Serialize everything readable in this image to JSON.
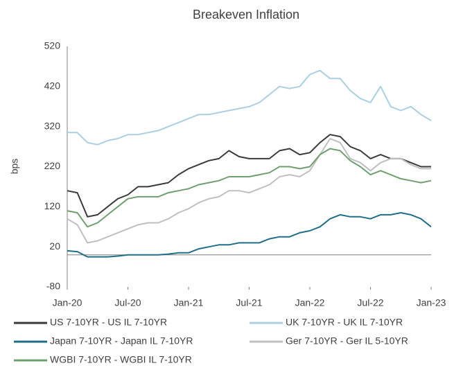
{
  "chart_data": {
    "type": "line",
    "title": "Breakeven Inflation",
    "y_label": "bps",
    "x": [
      "2020-01",
      "2020-02",
      "2020-03",
      "2020-04",
      "2020-05",
      "2020-06",
      "2020-07",
      "2020-08",
      "2020-09",
      "2020-10",
      "2020-11",
      "2020-12",
      "2021-01",
      "2021-02",
      "2021-03",
      "2021-04",
      "2021-05",
      "2021-06",
      "2021-07",
      "2021-08",
      "2021-09",
      "2021-10",
      "2021-11",
      "2021-12",
      "2022-01",
      "2022-02",
      "2022-03",
      "2022-04",
      "2022-05",
      "2022-06",
      "2022-07",
      "2022-08",
      "2022-09",
      "2022-10",
      "2022-11",
      "2022-12",
      "2023-01"
    ],
    "xticks": [
      {
        "value": "2020-01",
        "label": "Jan-20"
      },
      {
        "value": "2020-07",
        "label": "Jul-20"
      },
      {
        "value": "2021-01",
        "label": "Jan-21"
      },
      {
        "value": "2021-07",
        "label": "Jul-21"
      },
      {
        "value": "2022-01",
        "label": "Jan-22"
      },
      {
        "value": "2022-07",
        "label": "Jul-22"
      },
      {
        "value": "2023-01",
        "label": "Jan-23"
      }
    ],
    "ylim": [
      -80,
      520
    ],
    "yticks": [
      -80,
      20,
      120,
      220,
      320,
      420,
      520
    ],
    "series": [
      {
        "name": "US 7-10YR - US IL 7-10YR",
        "color": "#3a3a3a",
        "values": [
          160,
          155,
          95,
          100,
          120,
          140,
          150,
          170,
          170,
          175,
          180,
          200,
          215,
          225,
          235,
          240,
          260,
          245,
          240,
          240,
          240,
          260,
          265,
          250,
          255,
          280,
          300,
          295,
          270,
          260,
          240,
          250,
          240,
          240,
          230,
          220,
          220
        ]
      },
      {
        "name": "UK 7-10YR - UK IL 7-10YR",
        "color": "#a9cfe0",
        "values": [
          305,
          305,
          280,
          275,
          285,
          290,
          300,
          300,
          305,
          310,
          320,
          330,
          340,
          350,
          350,
          355,
          360,
          365,
          370,
          380,
          400,
          420,
          415,
          420,
          450,
          460,
          440,
          440,
          410,
          390,
          380,
          420,
          370,
          360,
          370,
          350,
          335
        ]
      },
      {
        "name": "Japan 7-10YR - Japan IL 7-10YR",
        "color": "#1f6e88",
        "values": [
          10,
          8,
          -5,
          -5,
          -5,
          -3,
          0,
          0,
          0,
          0,
          2,
          5,
          5,
          15,
          20,
          25,
          25,
          30,
          30,
          30,
          40,
          45,
          45,
          55,
          60,
          70,
          90,
          100,
          95,
          95,
          90,
          100,
          100,
          105,
          100,
          90,
          70
        ]
      },
      {
        "name": "Ger 7-10YR - Ger IL 5-10YR",
        "color": "#bfbfbf",
        "values": [
          90,
          75,
          30,
          35,
          45,
          55,
          65,
          75,
          80,
          80,
          90,
          105,
          115,
          130,
          140,
          145,
          160,
          160,
          155,
          165,
          175,
          195,
          200,
          195,
          210,
          250,
          290,
          280,
          240,
          230,
          210,
          230,
          240,
          240,
          225,
          215,
          215
        ]
      },
      {
        "name": "WGBI 7-10YR - WGBI IL 7-10YR",
        "color": "#6f9e6f",
        "values": [
          110,
          105,
          70,
          80,
          100,
          120,
          140,
          145,
          145,
          145,
          155,
          160,
          165,
          175,
          180,
          185,
          195,
          195,
          195,
          200,
          205,
          220,
          220,
          215,
          220,
          250,
          265,
          260,
          235,
          220,
          200,
          210,
          200,
          190,
          185,
          180,
          185
        ]
      }
    ]
  }
}
